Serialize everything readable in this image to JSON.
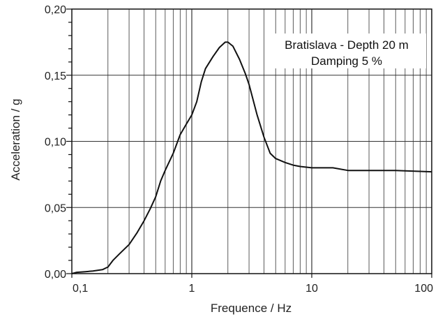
{
  "chart_data": {
    "type": "line",
    "x_scale": "log",
    "xlim": [
      0.1,
      100
    ],
    "ylim": [
      0,
      0.2
    ],
    "grid": true,
    "xlabel": "Frequence / Hz",
    "ylabel": "Acceleration / g",
    "x_tick_labels": [
      {
        "value": 0.1,
        "label": "0,1"
      },
      {
        "value": 1,
        "label": "1"
      },
      {
        "value": 10,
        "label": "10"
      },
      {
        "value": 100,
        "label": "100"
      }
    ],
    "y_tick_labels": [
      {
        "value": 0,
        "label": "0,00"
      },
      {
        "value": 0.05,
        "label": "0,05"
      },
      {
        "value": 0.1,
        "label": "0,10"
      },
      {
        "value": 0.15,
        "label": "0,15"
      },
      {
        "value": 0.2,
        "label": "0,20"
      }
    ],
    "annotation": {
      "line1": "Bratislava - Depth 20 m",
      "line2": "Damping 5 %",
      "position": "top-right"
    },
    "series": [
      {
        "color": "#111111",
        "points": [
          [
            0.1,
            0.0
          ],
          [
            0.11,
            0.001
          ],
          [
            0.13,
            0.0015
          ],
          [
            0.15,
            0.002
          ],
          [
            0.18,
            0.003
          ],
          [
            0.2,
            0.005
          ],
          [
            0.22,
            0.01
          ],
          [
            0.25,
            0.015
          ],
          [
            0.3,
            0.022
          ],
          [
            0.35,
            0.031
          ],
          [
            0.4,
            0.04
          ],
          [
            0.45,
            0.049
          ],
          [
            0.5,
            0.058
          ],
          [
            0.55,
            0.07
          ],
          [
            0.6,
            0.078
          ],
          [
            0.7,
            0.091
          ],
          [
            0.8,
            0.105
          ],
          [
            0.9,
            0.113
          ],
          [
            1.0,
            0.12
          ],
          [
            1.1,
            0.13
          ],
          [
            1.2,
            0.145
          ],
          [
            1.3,
            0.155
          ],
          [
            1.5,
            0.164
          ],
          [
            1.7,
            0.171
          ],
          [
            1.9,
            0.175
          ],
          [
            2.0,
            0.175
          ],
          [
            2.2,
            0.172
          ],
          [
            2.5,
            0.162
          ],
          [
            2.8,
            0.151
          ],
          [
            3.0,
            0.143
          ],
          [
            3.5,
            0.12
          ],
          [
            4.0,
            0.103
          ],
          [
            4.5,
            0.091
          ],
          [
            5.0,
            0.087
          ],
          [
            6.0,
            0.084
          ],
          [
            7.0,
            0.082
          ],
          [
            8.0,
            0.081
          ],
          [
            10.0,
            0.08
          ],
          [
            15.0,
            0.08
          ],
          [
            20.0,
            0.078
          ],
          [
            30.0,
            0.078
          ],
          [
            50.0,
            0.078
          ],
          [
            100.0,
            0.077
          ]
        ]
      }
    ]
  }
}
